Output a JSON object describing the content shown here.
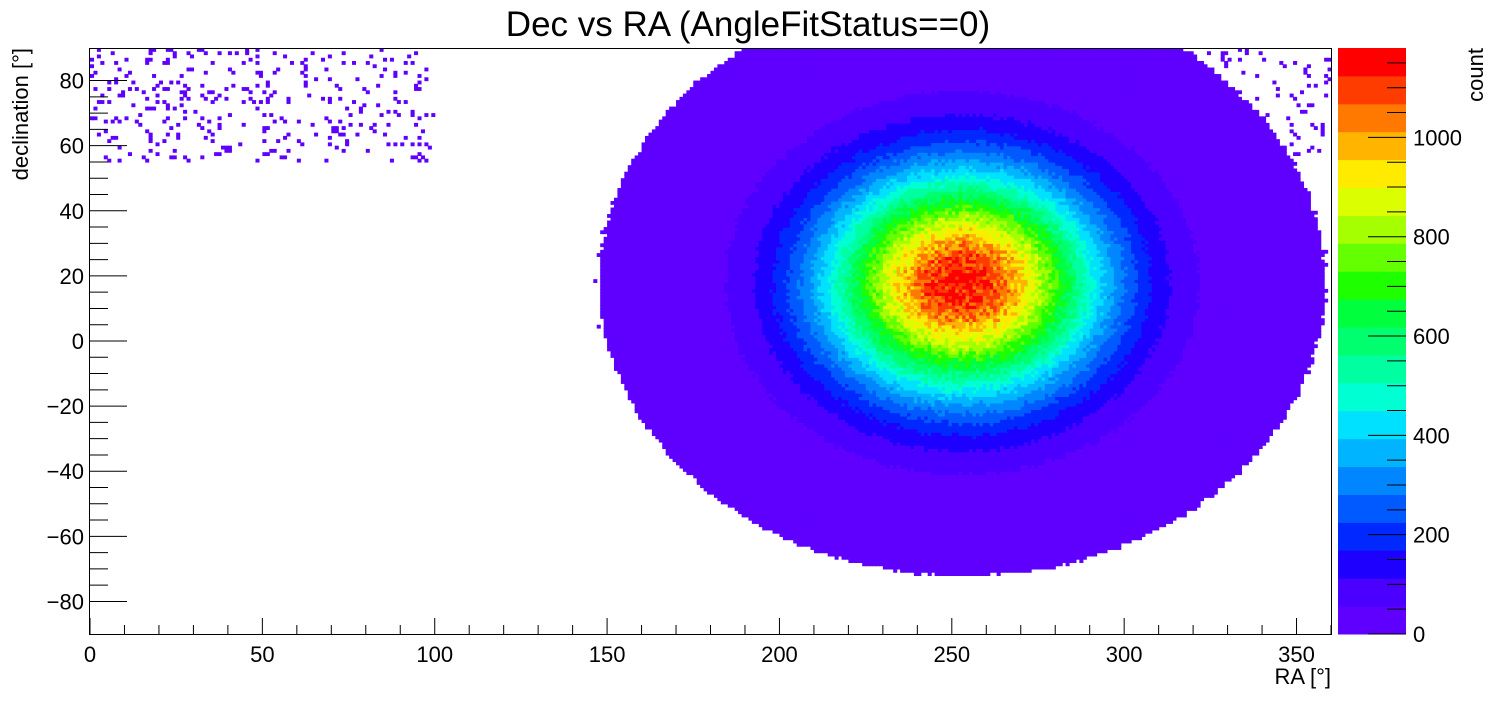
{
  "chart_data": {
    "type": "heatmap",
    "title": "Dec vs RA (AngleFitStatus==0)",
    "xlabel": "RA [°]",
    "ylabel": "declination [°]",
    "zlabel": "count",
    "xlim": [
      0,
      360
    ],
    "ylim": [
      -90,
      90
    ],
    "zlim": [
      0,
      1180
    ],
    "x_ticks": [
      "0",
      "50",
      "100",
      "150",
      "200",
      "250",
      "300",
      "350"
    ],
    "y_ticks": [
      "−80",
      "−60",
      "−40",
      "−20",
      "0",
      "20",
      "40",
      "60",
      "80"
    ],
    "z_ticks": [
      "0",
      "200",
      "400",
      "600",
      "800",
      "1000"
    ],
    "grid": false,
    "legend": "colorbar right",
    "peak": {
      "ra": 253,
      "dec": 18,
      "count": 1150
    },
    "palette": [
      "#5F00FF",
      "#4B00FF",
      "#1E00FF",
      "#0028FF",
      "#005AFF",
      "#0087FF",
      "#00B4FF",
      "#00E1FF",
      "#00FFD2",
      "#00FFA0",
      "#00FF6E",
      "#00FF3C",
      "#1EFF00",
      "#64FF00",
      "#A5FF00",
      "#DCFF00",
      "#FFEB00",
      "#FFB400",
      "#FF7800",
      "#FF3C00",
      "#FF0000"
    ]
  }
}
